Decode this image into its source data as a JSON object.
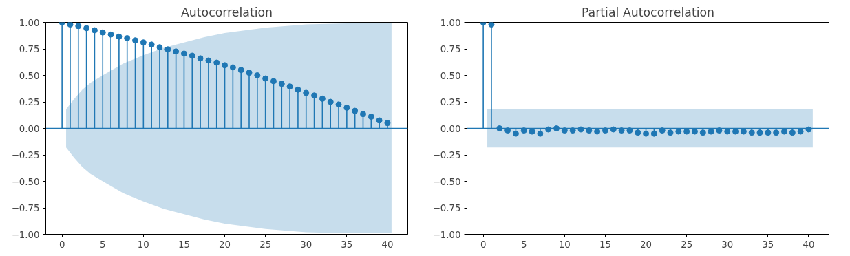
{
  "chart_data": [
    {
      "type": "lollipop",
      "title": "Autocorrelation",
      "x": [
        0,
        1,
        2,
        3,
        4,
        5,
        6,
        7,
        8,
        9,
        10,
        11,
        12,
        13,
        14,
        15,
        16,
        17,
        18,
        19,
        20,
        21,
        22,
        23,
        24,
        25,
        26,
        27,
        28,
        29,
        30,
        31,
        32,
        33,
        34,
        35,
        36,
        37,
        38,
        39,
        40
      ],
      "series": [
        {
          "type": "line",
          "color": "#1f77b4",
          "x": [
            -2,
            0.5,
            1.5,
            2.5,
            3.5,
            5,
            7.5,
            10,
            12.5,
            15,
            17.5,
            20,
            25,
            30,
            35,
            40.5,
            42.5
          ],
          "values": [
            0,
            0,
            0,
            0,
            0,
            0,
            0,
            0,
            0,
            0,
            0,
            0,
            0,
            0,
            0,
            0,
            0
          ],
          "lower": [
            null,
            -0.18,
            -0.28,
            -0.365,
            -0.43,
            -0.5,
            -0.61,
            -0.69,
            -0.76,
            -0.81,
            -0.86,
            -0.9,
            -0.95,
            -0.98,
            -0.99,
            -0.99,
            null
          ],
          "upper": [
            null,
            0.18,
            0.28,
            0.365,
            0.43,
            0.5,
            0.61,
            0.69,
            0.76,
            0.81,
            0.86,
            0.9,
            0.95,
            0.98,
            0.99,
            0.99,
            null
          ]
        },
        {
          "color": "#1f77b4",
          "marker": "circle",
          "values": [
            1.0,
            0.98,
            0.965,
            0.945,
            0.925,
            0.905,
            0.885,
            0.865,
            0.85,
            0.83,
            0.81,
            0.79,
            0.765,
            0.745,
            0.725,
            0.705,
            0.685,
            0.66,
            0.64,
            0.62,
            0.595,
            0.575,
            0.55,
            0.525,
            0.5,
            0.47,
            0.445,
            0.42,
            0.395,
            0.365,
            0.335,
            0.31,
            0.28,
            0.25,
            0.225,
            0.195,
            0.165,
            0.135,
            0.11,
            0.075,
            0.05
          ]
        }
      ],
      "xlim": [
        -2,
        42.5
      ],
      "ylim": [
        -1,
        1
      ],
      "xticks": [
        0,
        5,
        10,
        15,
        20,
        25,
        30,
        35,
        40
      ],
      "yticks": [
        {
          "value": -1,
          "label": "−1.00"
        },
        {
          "value": -0.75,
          "label": "−0.75"
        },
        {
          "value": -0.5,
          "label": "−0.50"
        },
        {
          "value": -0.25,
          "label": "−0.25"
        },
        {
          "value": 0,
          "label": "0.00"
        },
        {
          "value": 0.25,
          "label": "0.25"
        },
        {
          "value": 0.5,
          "label": "0.50"
        },
        {
          "value": 0.75,
          "label": "0.75"
        },
        {
          "value": 1,
          "label": "1.00"
        }
      ]
    },
    {
      "type": "lollipop",
      "title": "Partial Autocorrelation",
      "x": [
        0,
        1,
        2,
        3,
        4,
        5,
        6,
        7,
        8,
        9,
        10,
        11,
        12,
        13,
        14,
        15,
        16,
        17,
        18,
        19,
        20,
        21,
        22,
        23,
        24,
        25,
        26,
        27,
        28,
        29,
        30,
        31,
        32,
        33,
        34,
        35,
        36,
        37,
        38,
        39,
        40
      ],
      "series": [
        {
          "type": "line",
          "color": "#1f77b4",
          "x": [
            -2,
            0.5,
            40.5,
            42.5
          ],
          "values": [
            0,
            0,
            0,
            0
          ],
          "lower": [
            null,
            -0.18,
            -0.18,
            null
          ],
          "upper": [
            null,
            0.18,
            0.18,
            null
          ]
        },
        {
          "color": "#1f77b4",
          "marker": "circle",
          "values": [
            1.0,
            0.98,
            0.0,
            -0.02,
            -0.05,
            -0.02,
            -0.03,
            -0.05,
            -0.01,
            0.0,
            -0.02,
            -0.02,
            -0.01,
            -0.02,
            -0.03,
            -0.02,
            -0.01,
            -0.02,
            -0.02,
            -0.04,
            -0.05,
            -0.05,
            -0.02,
            -0.04,
            -0.03,
            -0.03,
            -0.03,
            -0.04,
            -0.03,
            -0.02,
            -0.03,
            -0.03,
            -0.03,
            -0.04,
            -0.04,
            -0.04,
            -0.04,
            -0.03,
            -0.04,
            -0.03,
            -0.01
          ]
        }
      ],
      "xlim": [
        -2,
        42.5
      ],
      "ylim": [
        -1,
        1
      ],
      "xticks": [
        0,
        5,
        10,
        15,
        20,
        25,
        30,
        35,
        40
      ],
      "yticks": [
        {
          "value": -1,
          "label": "−1.00"
        },
        {
          "value": -0.75,
          "label": "−0.75"
        },
        {
          "value": -0.5,
          "label": "−0.50"
        },
        {
          "value": -0.25,
          "label": "−0.25"
        },
        {
          "value": 0,
          "label": "0.00"
        },
        {
          "value": 0.25,
          "label": "0.25"
        },
        {
          "value": 0.5,
          "label": "0.50"
        },
        {
          "value": 0.75,
          "label": "0.75"
        },
        {
          "value": 1,
          "label": "1.00"
        }
      ]
    }
  ]
}
